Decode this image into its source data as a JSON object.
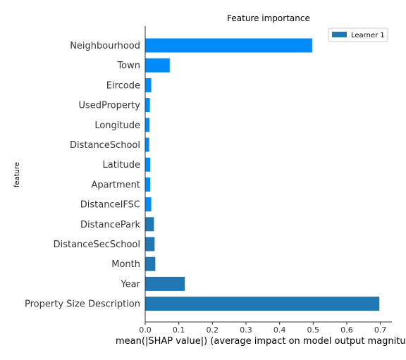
{
  "chart_data": {
    "type": "bar",
    "orientation": "horizontal",
    "title": "Feature importance",
    "xlabel": "mean(|SHAP value|) (average impact on model output magnitude)",
    "ylabel": "feature",
    "xlim": [
      0,
      0.73
    ],
    "xticks": [
      "0.0",
      "0.1",
      "0.2",
      "0.3",
      "0.4",
      "0.5",
      "0.6",
      "0.7"
    ],
    "grid": false,
    "legend": {
      "position": "top-right",
      "entries": [
        "Learner 1"
      ]
    },
    "series": [
      {
        "name": "Learner 1",
        "color": "#1f77b4"
      }
    ],
    "highlight_color": "#008bfb",
    "bars": [
      {
        "label": "Neighbourhood",
        "value": 0.497,
        "color": "#008bfb"
      },
      {
        "label": "Town",
        "value": 0.073,
        "color": "#008bfb"
      },
      {
        "label": "Eircode",
        "value": 0.018,
        "color": "#008bfb"
      },
      {
        "label": "UsedProperty",
        "value": 0.014,
        "color": "#008bfb"
      },
      {
        "label": "Longitude",
        "value": 0.013,
        "color": "#008bfb"
      },
      {
        "label": "DistanceSchool",
        "value": 0.012,
        "color": "#008bfb"
      },
      {
        "label": "Latitude",
        "value": 0.015,
        "color": "#008bfb"
      },
      {
        "label": "Apartment",
        "value": 0.015,
        "color": "#008bfb"
      },
      {
        "label": "DistanceIFSC",
        "value": 0.018,
        "color": "#008bfb"
      },
      {
        "label": "DistancePark",
        "value": 0.026,
        "color": "#1f77b4"
      },
      {
        "label": "DistanceSecSchool",
        "value": 0.028,
        "color": "#1f77b4"
      },
      {
        "label": "Month",
        "value": 0.03,
        "color": "#1f77b4"
      },
      {
        "label": "Year",
        "value": 0.118,
        "color": "#1f77b4"
      },
      {
        "label": "Property Size Description",
        "value": 0.697,
        "color": "#1f77b4"
      }
    ]
  }
}
